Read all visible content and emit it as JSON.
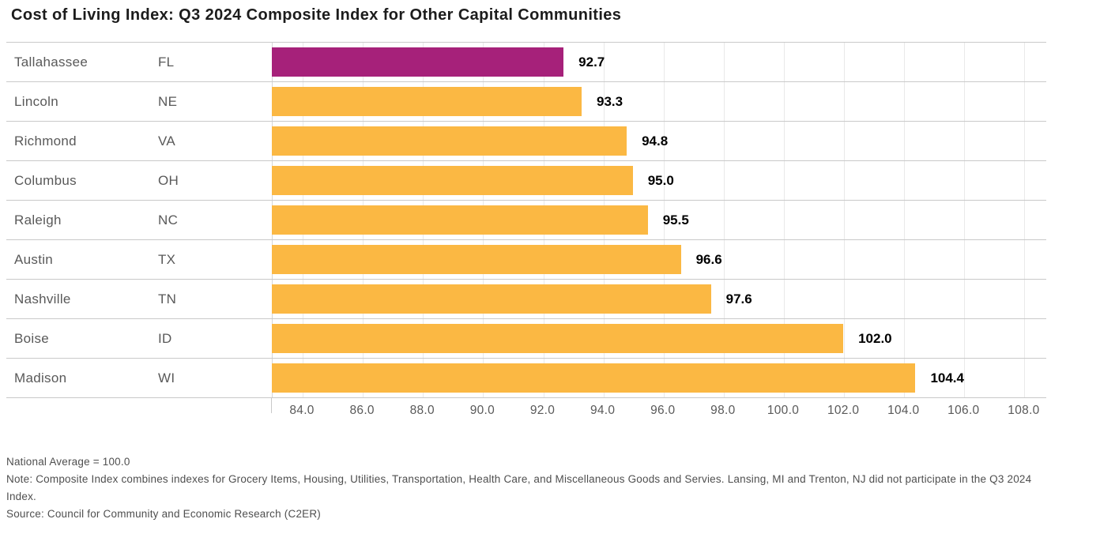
{
  "title": "Cost of Living Index: Q3 2024 Composite Index for Other Capital Communities",
  "chart_data": {
    "type": "bar",
    "orientation": "horizontal",
    "title": "Cost of Living Index: Q3 2024 Composite Index for Other Capital Communities",
    "xlim": [
      83.0,
      108.75
    ],
    "grid": true,
    "legend": false,
    "x_tick_values": [
      84,
      86,
      88,
      90,
      92,
      94,
      96,
      98,
      100,
      102,
      104,
      106,
      108
    ],
    "x_tick_labels": [
      "84.0",
      "86.0",
      "88.0",
      "90.0",
      "92.0",
      "94.0",
      "96.0",
      "98.0",
      "100.0",
      "102.0",
      "104.0",
      "106.0",
      "108.0"
    ],
    "rows": [
      {
        "city": "Tallahassee",
        "state": "FL",
        "value": 92.7,
        "value_label": "92.7",
        "highlight": true
      },
      {
        "city": "Lincoln",
        "state": "NE",
        "value": 93.3,
        "value_label": "93.3",
        "highlight": false
      },
      {
        "city": "Richmond",
        "state": "VA",
        "value": 94.8,
        "value_label": "94.8",
        "highlight": false
      },
      {
        "city": "Columbus",
        "state": "OH",
        "value": 95.0,
        "value_label": "95.0",
        "highlight": false
      },
      {
        "city": "Raleigh",
        "state": "NC",
        "value": 95.5,
        "value_label": "95.5",
        "highlight": false
      },
      {
        "city": "Austin",
        "state": "TX",
        "value": 96.6,
        "value_label": "96.6",
        "highlight": false
      },
      {
        "city": "Nashville",
        "state": "TN",
        "value": 97.6,
        "value_label": "97.6",
        "highlight": false
      },
      {
        "city": "Boise",
        "state": "ID",
        "value": 102.0,
        "value_label": "102.0",
        "highlight": false
      },
      {
        "city": "Madison",
        "state": "WI",
        "value": 104.4,
        "value_label": "104.4",
        "highlight": false
      }
    ],
    "colors": {
      "bar": "#FBB843",
      "highlight": "#A6217A"
    }
  },
  "footnotes": {
    "national_average": "National Average = 100.0",
    "note": "Note: Composite Index combines indexes for Grocery Items, Housing, Utilities, Transportation, Health Care, and Miscellaneous Goods and Servies. Lansing, MI and Trenton, NJ did not participate in the Q3 2024 Index.",
    "source": "Source: Council for Community and Economic Research (C2ER)"
  }
}
